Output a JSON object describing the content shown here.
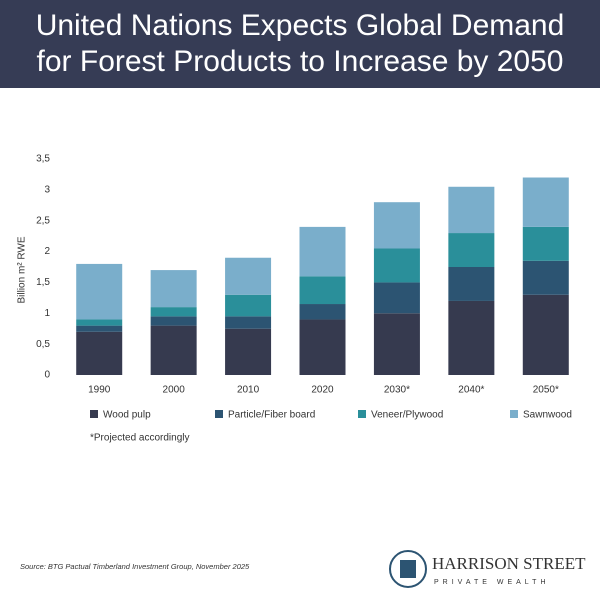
{
  "chart_data": {
    "type": "stacked_bar",
    "title": [
      "United Nations Expects Global Demand",
      "for Forest Products to Increase by 2050"
    ],
    "y_label": "Billion m² RWE",
    "categories": [
      "1990",
      "2000",
      "2010",
      "2020",
      "2030*",
      "2040*",
      "2050*"
    ],
    "series": [
      {
        "name": "Wood pulp",
        "color": "#363a4f",
        "values": [
          0.7,
          0.8,
          0.75,
          0.9,
          1.0,
          1.2,
          1.3
        ]
      },
      {
        "name": "Particle/Fiber board",
        "color": "#2c5472",
        "values": [
          0.1,
          0.15,
          0.2,
          0.25,
          0.5,
          0.55,
          0.55
        ]
      },
      {
        "name": "Veneer/Plywood",
        "color": "#2a8f9a",
        "values": [
          0.1,
          0.15,
          0.35,
          0.45,
          0.55,
          0.55,
          0.55
        ]
      },
      {
        "name": "Sawnwood",
        "color": "#7aaecb",
        "values": [
          0.9,
          0.6,
          0.6,
          0.8,
          0.75,
          0.75,
          0.8
        ]
      }
    ],
    "ylim": [
      0,
      3.5
    ],
    "yticks": [
      0,
      {
        "value": 0.5,
        "label": "0,5"
      },
      1,
      {
        "value": 1.5,
        "label": "1,5"
      },
      2,
      {
        "value": 2.5,
        "label": "2,5"
      },
      3,
      {
        "value": 3.5,
        "label": "3,5"
      }
    ],
    "grid": false,
    "note": "*Projected accordingly",
    "note_color": "#7fb3d5"
  },
  "footer": {
    "source": "Source: BTG Pactual Timberland Investment Group, November 2025",
    "logo_name": "HARRISON STREET",
    "logo_tagline": "PRIVATE WEALTH"
  }
}
